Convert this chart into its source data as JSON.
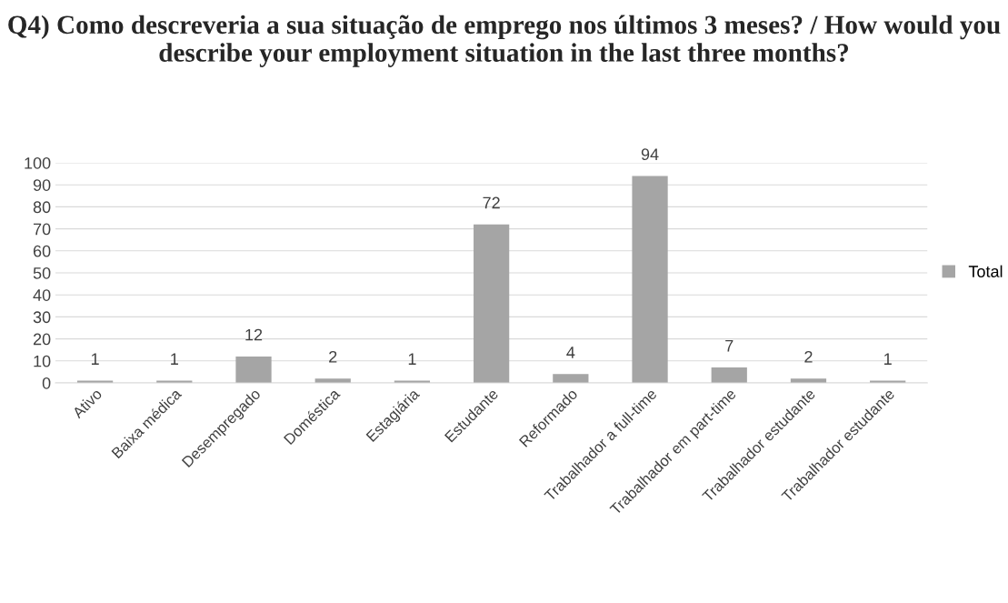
{
  "chart_data": {
    "type": "bar",
    "title": "Q4) Como descreveria a sua situação de emprego nos últimos 3 meses? / How would you describe your employment situation in the last three months?",
    "categories": [
      "Ativo",
      "Baixa médica",
      "Desempregado",
      "Doméstica",
      "Estagiária",
      "Estudante",
      "Reformado",
      "Trabalhador a full-time",
      "Trabalhador em part-time",
      "Trabalhador estudante",
      "Trabalhador estudante"
    ],
    "series": [
      {
        "name": "Total",
        "color": "#a5a5a5",
        "values": [
          1,
          1,
          12,
          2,
          1,
          72,
          4,
          94,
          7,
          2,
          1
        ]
      }
    ],
    "ylim": [
      0,
      100
    ],
    "yticks": [
      0,
      10,
      20,
      30,
      40,
      50,
      60,
      70,
      80,
      90,
      100
    ],
    "grid": "y",
    "legend": "right",
    "data_labels": true
  }
}
